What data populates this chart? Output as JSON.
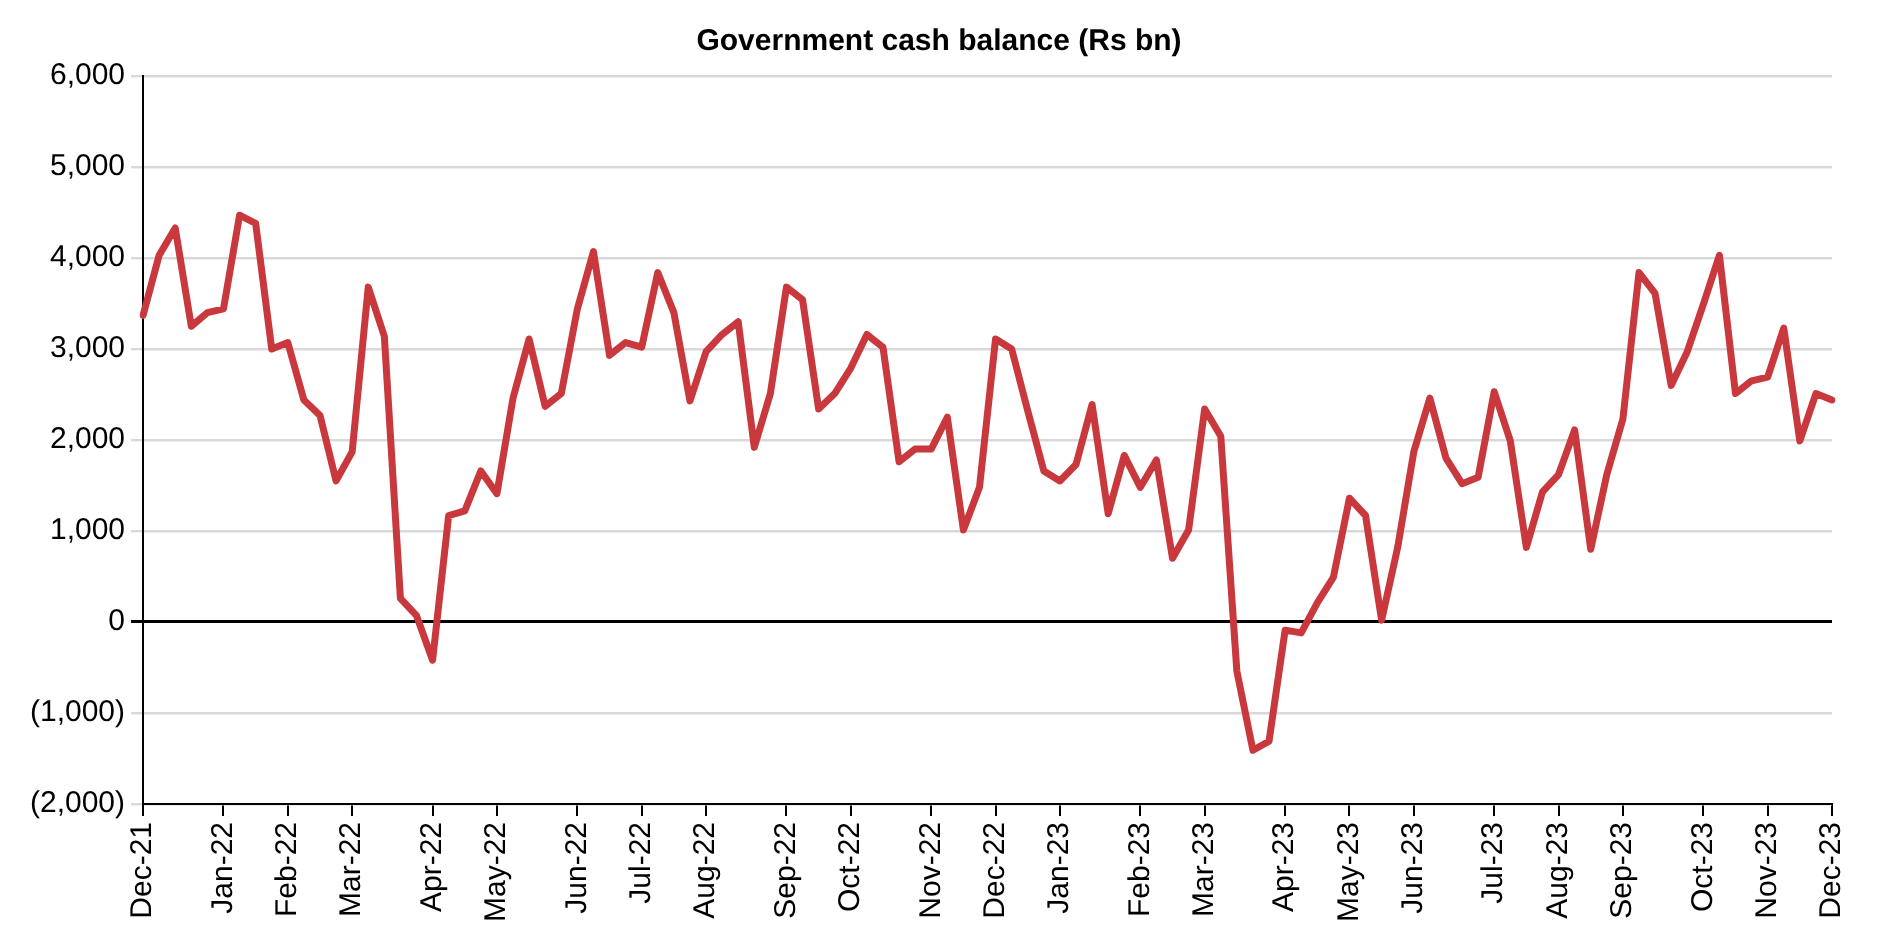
{
  "chart_data": {
    "type": "line",
    "title": "Government cash balance (Rs bn)",
    "categories": [
      "Dec-21",
      null,
      null,
      null,
      null,
      "Jan-22",
      null,
      null,
      null,
      "Feb-22",
      null,
      null,
      null,
      "Mar-22",
      null,
      null,
      null,
      null,
      "Apr-22",
      null,
      null,
      null,
      "May-22",
      null,
      null,
      null,
      null,
      "Jun-22",
      null,
      null,
      null,
      "Jul-22",
      null,
      null,
      null,
      "Aug-22",
      null,
      null,
      null,
      null,
      "Sep-22",
      null,
      null,
      null,
      "Oct-22",
      null,
      null,
      null,
      null,
      "Nov-22",
      null,
      null,
      null,
      "Dec-22",
      null,
      null,
      null,
      "Jan-23",
      null,
      null,
      null,
      null,
      "Feb-23",
      null,
      null,
      null,
      "Mar-23",
      null,
      null,
      null,
      null,
      "Apr-23",
      null,
      null,
      null,
      "May-23",
      null,
      null,
      null,
      "Jun-23",
      null,
      null,
      null,
      null,
      "Jul-23",
      null,
      null,
      null,
      "Aug-23",
      null,
      null,
      null,
      "Sep-23",
      null,
      null,
      null,
      null,
      "Oct-23",
      null,
      null,
      null,
      "Nov-23",
      null,
      null,
      null,
      "Dec-23"
    ],
    "series": [
      {
        "color": "#c8383c",
        "values": [
          3370,
          4030,
          4330,
          3250,
          3400,
          3440,
          4470,
          4380,
          3000,
          3070,
          2440,
          2270,
          1550,
          1870,
          3680,
          3140,
          260,
          70,
          -420,
          1170,
          1220,
          1660,
          1410,
          2460,
          3110,
          2370,
          2510,
          3440,
          4070,
          2930,
          3070,
          3020,
          3840,
          3400,
          2430,
          2970,
          3160,
          3300,
          1920,
          2510,
          3680,
          3540,
          2340,
          2510,
          2790,
          3160,
          3020,
          1760,
          1900,
          1900,
          2250,
          1010,
          1480,
          3110,
          3000,
          2320,
          1660,
          1550,
          1730,
          2390,
          1190,
          1830,
          1480,
          1780,
          700,
          1010,
          2340,
          2040,
          -540,
          -1410,
          -1310,
          -90,
          -120,
          210,
          490,
          1360,
          1170,
          20,
          820,
          1870,
          2460,
          1800,
          1520,
          1590,
          2530,
          1990,
          820,
          1430,
          1620,
          2110,
          800,
          1620,
          2230,
          3840,
          3610,
          2600,
          2970,
          3490,
          4030,
          2510,
          2650,
          2690,
          3230,
          1990,
          2510,
          2440
        ]
      }
    ],
    "ylim": [
      -2000,
      6000
    ],
    "yticks": [
      {
        "value": -2000,
        "label": "(2,000)"
      },
      {
        "value": -1000,
        "label": "(1,000)"
      },
      0,
      {
        "value": 1000,
        "label": "1,000"
      },
      {
        "value": 2000,
        "label": "2,000"
      },
      {
        "value": 3000,
        "label": "3,000"
      },
      {
        "value": 4000,
        "label": "4,000"
      },
      {
        "value": 5000,
        "label": "5,000"
      },
      {
        "value": 6000,
        "label": "6,000"
      }
    ],
    "grid": "y",
    "legend": false,
    "marker": "none",
    "line_style": "solid"
  }
}
